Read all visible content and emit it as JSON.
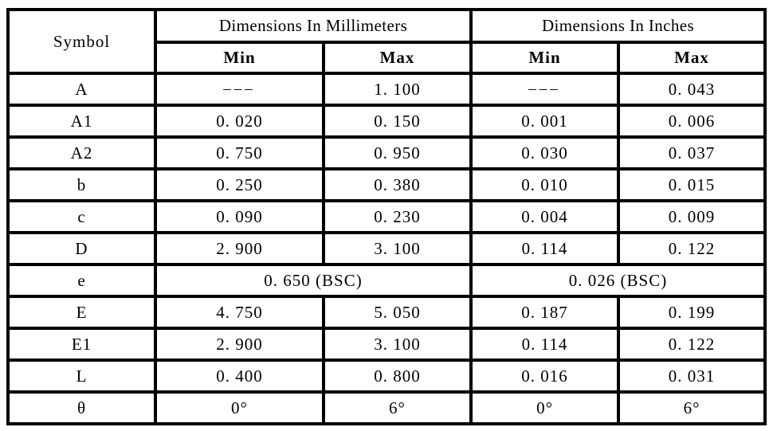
{
  "table": {
    "columns": {
      "symbol": "Symbol",
      "mm_group": "Dimensions In Millimeters",
      "inch_group": "Dimensions In Inches",
      "min": "Min",
      "max": "Max"
    },
    "rows": [
      {
        "symbol": "A",
        "mm_min": "–––",
        "mm_max": "1. 100",
        "inch_min": "–––",
        "inch_max": "0. 043"
      },
      {
        "symbol": "A1",
        "mm_min": "0. 020",
        "mm_max": "0. 150",
        "inch_min": "0. 001",
        "inch_max": "0. 006"
      },
      {
        "symbol": "A2",
        "mm_min": "0. 750",
        "mm_max": "0. 950",
        "inch_min": "0. 030",
        "inch_max": "0. 037"
      },
      {
        "symbol": "b",
        "mm_min": "0. 250",
        "mm_max": "0. 380",
        "inch_min": "0. 010",
        "inch_max": "0. 015"
      },
      {
        "symbol": "c",
        "mm_min": "0. 090",
        "mm_max": "0. 230",
        "inch_min": "0. 004",
        "inch_max": "0. 009"
      },
      {
        "symbol": "D",
        "mm_min": "2. 900",
        "mm_max": "3. 100",
        "inch_min": "0. 114",
        "inch_max": "0. 122"
      },
      {
        "symbol": "e",
        "merged": true,
        "mm": "0. 650 (BSC)",
        "inch": "0. 026 (BSC)"
      },
      {
        "symbol": "E",
        "mm_min": "4. 750",
        "mm_max": "5. 050",
        "inch_min": "0. 187",
        "inch_max": "0. 199"
      },
      {
        "symbol": "E1",
        "mm_min": "2. 900",
        "mm_max": "3. 100",
        "inch_min": "0. 114",
        "inch_max": "0. 122"
      },
      {
        "symbol": "L",
        "mm_min": "0. 400",
        "mm_max": "0. 800",
        "inch_min": "0. 016",
        "inch_max": "0. 031"
      },
      {
        "symbol": "θ",
        "mm_min": "0°",
        "mm_max": "6°",
        "inch_min": "0°",
        "inch_max": "6°"
      }
    ]
  },
  "colors": {
    "border": "#000000",
    "text": "#000000",
    "background": "#ffffff"
  }
}
